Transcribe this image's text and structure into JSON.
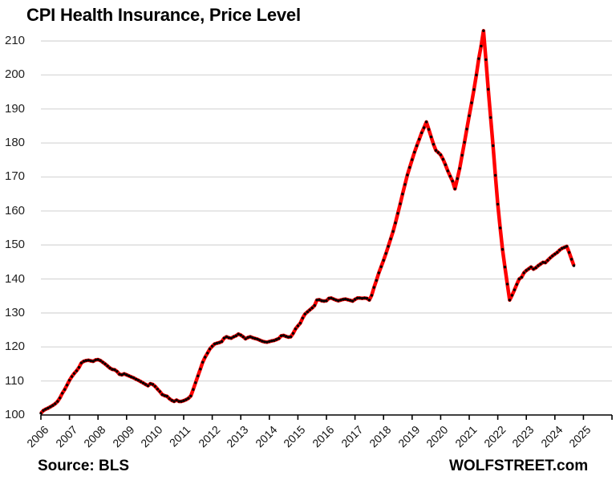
{
  "chart_data": {
    "type": "line",
    "title": "CPI Health Insurance, Price Level",
    "xlabel": "",
    "ylabel": "",
    "ylim": [
      100,
      213
    ],
    "yticks": [
      100,
      110,
      120,
      130,
      140,
      150,
      160,
      170,
      180,
      190,
      200,
      210
    ],
    "xticks": [
      "2006",
      "2007",
      "2008",
      "2009",
      "2010",
      "2011",
      "2012",
      "2013",
      "2014",
      "2015",
      "2016",
      "2017",
      "2018",
      "2019",
      "2020",
      "2021",
      "2022",
      "2023",
      "2024",
      "2025"
    ],
    "grid": "horizontal",
    "legend": "none",
    "line_color": "#ff0000",
    "marker_color": "#000000",
    "frequency": "monthly",
    "series": [
      {
        "name": "CPI Health Insurance",
        "start": "2006-01",
        "values": [
          100.5,
          101.3,
          101.7,
          102.0,
          102.4,
          102.8,
          103.3,
          104.0,
          105.0,
          106.4,
          107.5,
          108.8,
          110.2,
          111.3,
          112.2,
          113.0,
          114.0,
          115.3,
          115.8,
          116.0,
          116.1,
          115.9,
          115.8,
          116.2,
          116.3,
          116.0,
          115.5,
          115.0,
          114.4,
          113.8,
          113.4,
          113.3,
          112.8,
          112.0,
          111.8,
          112.1,
          111.8,
          111.5,
          111.2,
          110.9,
          110.5,
          110.2,
          109.8,
          109.4,
          109.0,
          108.6,
          109.2,
          109.0,
          108.4,
          107.6,
          106.9,
          106.0,
          105.7,
          105.5,
          104.8,
          104.3,
          104.0,
          104.4,
          104.0,
          104.0,
          104.2,
          104.5,
          104.9,
          105.6,
          107.5,
          109.5,
          111.5,
          113.5,
          115.5,
          117.0,
          118.2,
          119.4,
          120.2,
          120.9,
          121.1,
          121.3,
          121.6,
          122.6,
          123.0,
          122.7,
          122.6,
          123.0,
          123.3,
          123.8,
          123.5,
          123.0,
          122.4,
          122.8,
          123.0,
          122.7,
          122.5,
          122.3,
          122.0,
          121.7,
          121.5,
          121.4,
          121.6,
          121.8,
          121.9,
          122.2,
          122.5,
          123.3,
          123.4,
          123.1,
          122.9,
          123.0,
          124.0,
          125.3,
          126.2,
          127.0,
          128.5,
          129.7,
          130.3,
          130.9,
          131.5,
          132.2,
          133.8,
          133.9,
          133.6,
          133.5,
          133.6,
          134.3,
          134.4,
          134.1,
          133.8,
          133.6,
          133.8,
          134.0,
          134.1,
          133.9,
          133.7,
          133.5,
          134.0,
          134.4,
          134.4,
          134.3,
          134.4,
          134.3,
          133.8,
          135.2,
          137.5,
          139.6,
          141.8,
          143.6,
          145.5,
          147.5,
          149.6,
          151.8,
          154.0,
          156.5,
          159.3,
          162.1,
          165.0,
          167.8,
          170.6,
          172.8,
          175.1,
          177.3,
          179.2,
          181.1,
          183.0,
          184.5,
          186.2,
          184.0,
          181.8,
          179.6,
          177.8,
          177.2,
          176.5,
          175.2,
          173.6,
          171.8,
          170.2,
          168.8,
          166.5,
          169.5,
          172.5,
          176.4,
          180.2,
          184.1,
          188.0,
          191.8,
          195.7,
          200.0,
          204.8,
          208.5,
          213.0,
          204.5,
          195.8,
          187.5,
          179.2,
          170.5,
          162.0,
          155.0,
          148.7,
          143.5,
          138.5,
          133.8,
          135.2,
          136.8,
          138.4,
          140.0,
          140.5,
          141.8,
          142.5,
          143.0,
          143.5,
          142.9,
          143.3,
          143.9,
          144.4,
          144.9,
          144.8,
          145.5,
          146.2,
          146.8,
          147.3,
          147.8,
          148.5,
          149.0,
          149.3,
          149.6,
          147.8,
          145.8,
          143.9
        ]
      }
    ]
  },
  "header": {
    "title": "CPI Health Insurance, Price Level"
  },
  "footer": {
    "source": "Source: BLS",
    "brand": "WOLFSTREET.com"
  }
}
